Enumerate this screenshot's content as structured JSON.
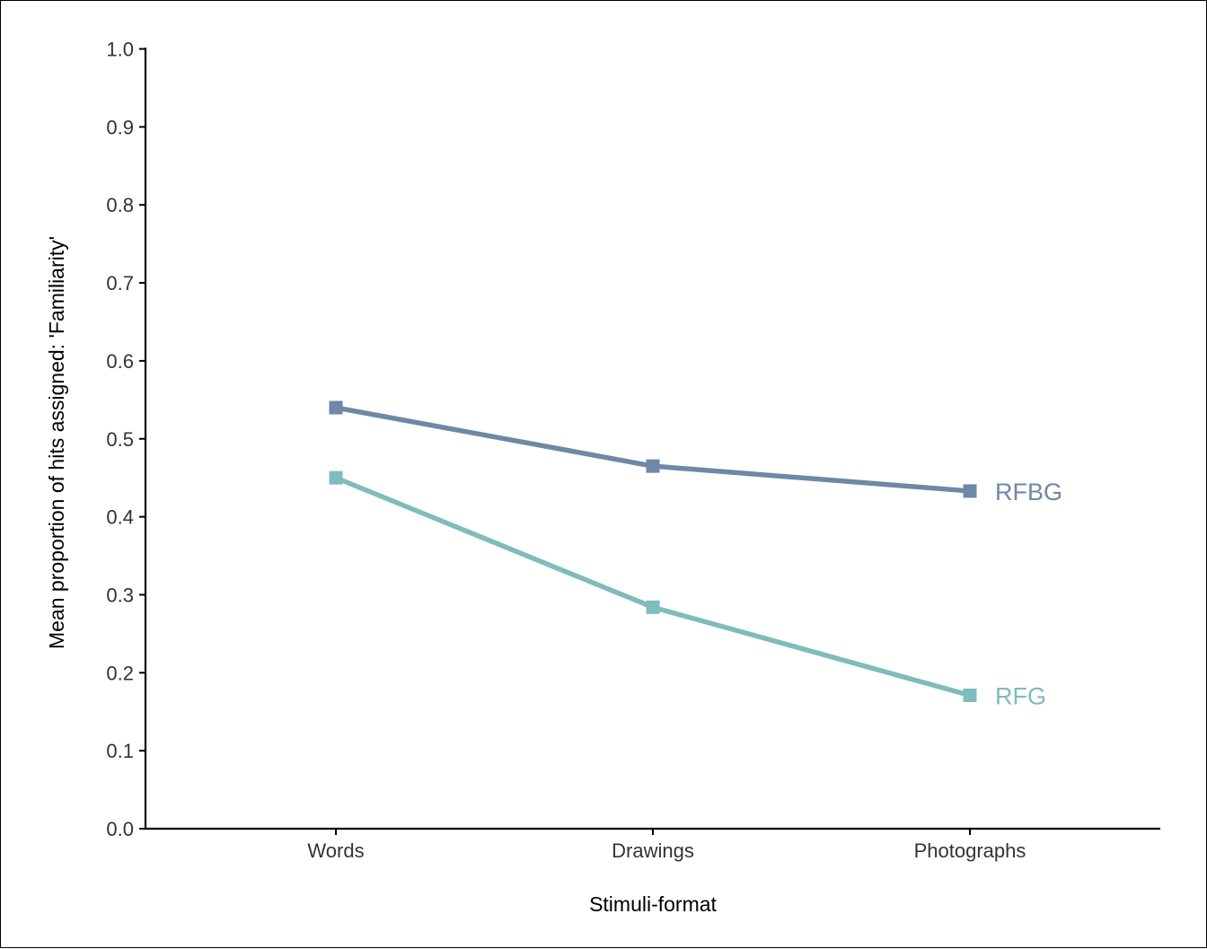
{
  "chart_data": {
    "type": "line",
    "title": "",
    "xlabel": "Stimuli-format",
    "ylabel": "Mean proportion of hits assigned:  'Familiarity'",
    "categories": [
      "Words",
      "Drawings",
      "Photographs"
    ],
    "ylim": [
      0.0,
      1.0
    ],
    "yticks": [
      "0.0",
      "0.1",
      "0.2",
      "0.3",
      "0.4",
      "0.5",
      "0.6",
      "0.7",
      "0.8",
      "0.9",
      "1.0"
    ],
    "grid": false,
    "legend": "direct labels at line ends (right)",
    "series": [
      {
        "name": "RFBG",
        "color": "#6e88a6",
        "values": [
          0.54,
          0.465,
          0.433
        ]
      },
      {
        "name": "RFG",
        "color": "#7fbcbb",
        "values": [
          0.45,
          0.284,
          0.171
        ]
      }
    ]
  }
}
